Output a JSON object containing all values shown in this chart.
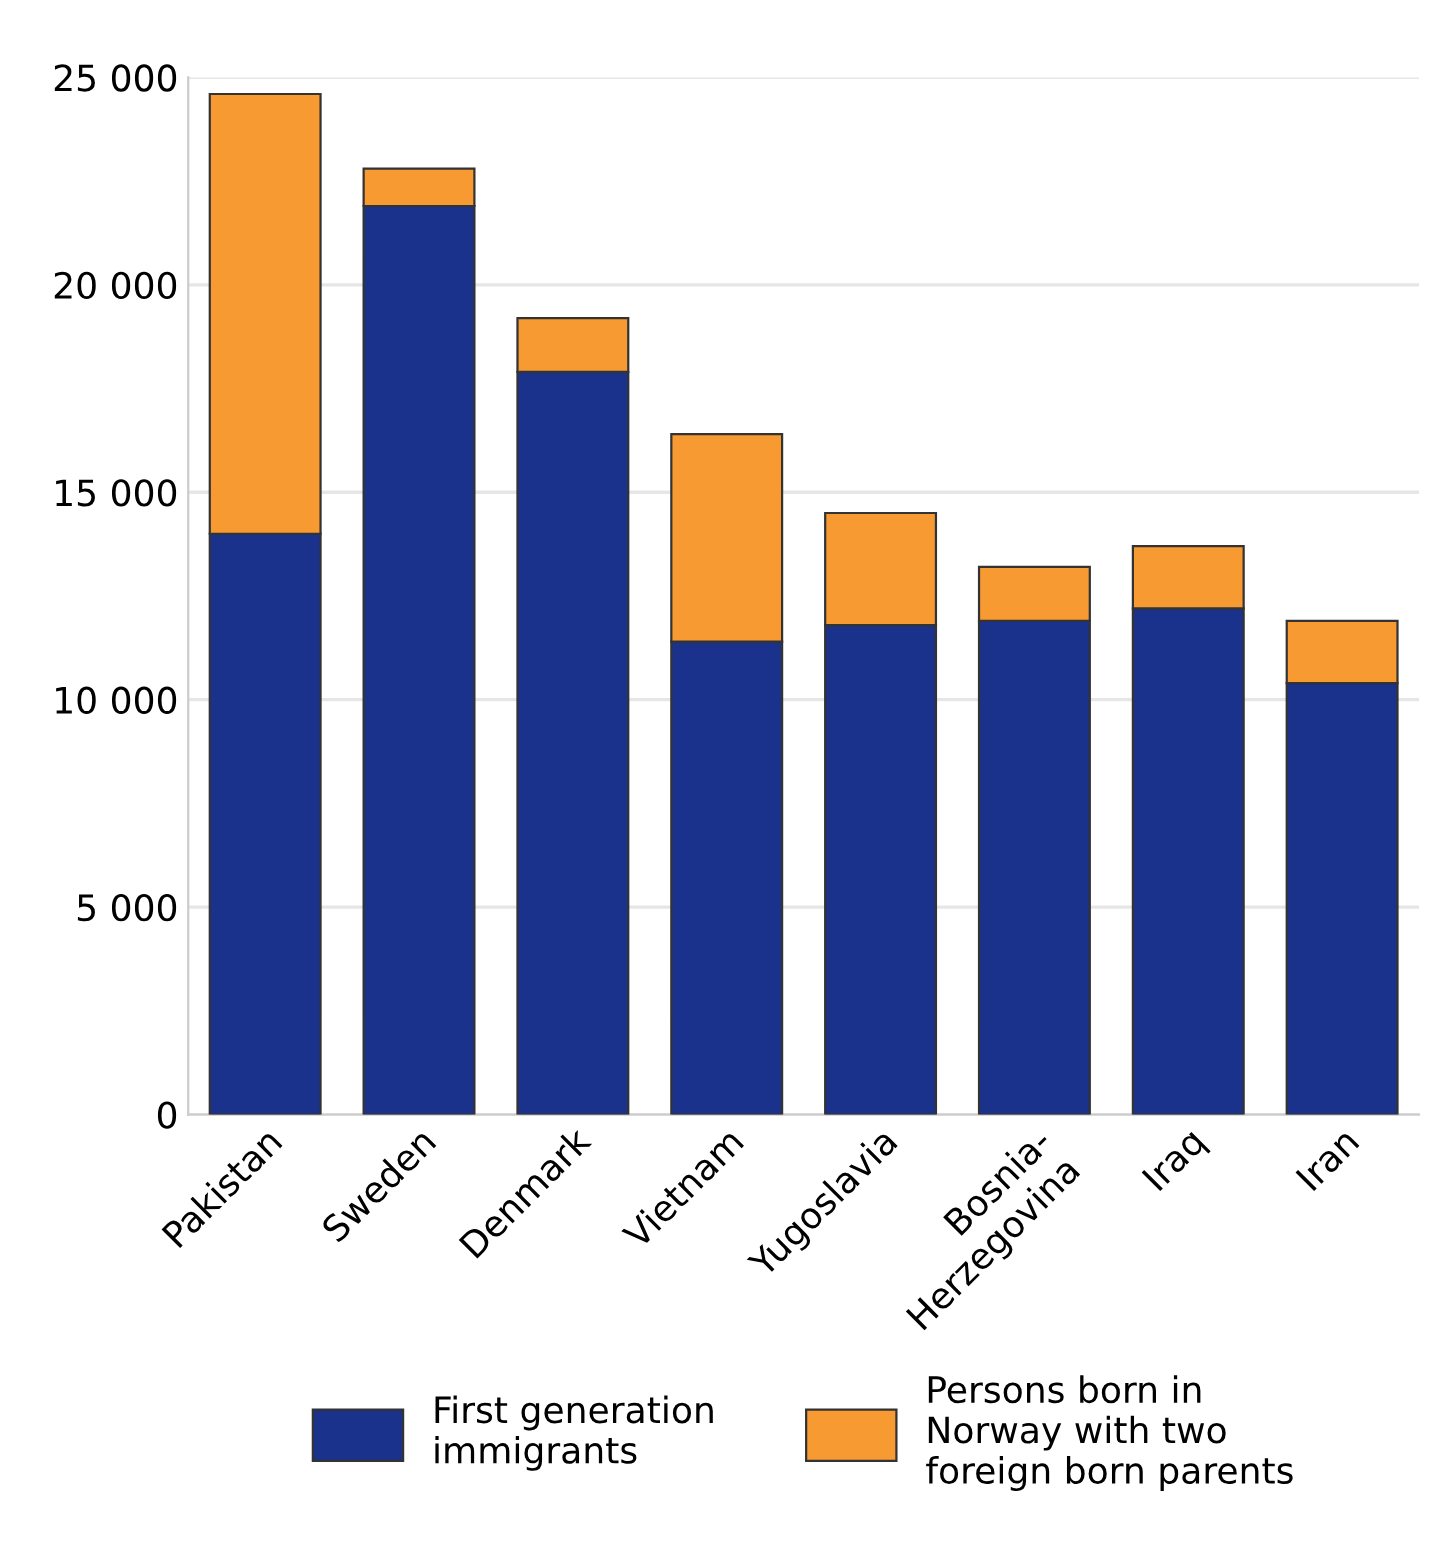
{
  "chart_data": {
    "type": "bar",
    "stacked": true,
    "categories": [
      "Pakistan",
      "Sweden",
      "Denmark",
      "Vietnam",
      "Yugoslavia",
      "Bosnia-\nHerzegovina",
      "Iraq",
      "Iran"
    ],
    "series": [
      {
        "name": "First generation\nimmigrants",
        "color": "#1a328c",
        "values": [
          14000,
          21900,
          17900,
          11400,
          11800,
          11900,
          12200,
          10400
        ]
      },
      {
        "name": "Persons born in\nNorway with two\nforeign born parents",
        "color": "#f79a32",
        "values": [
          10600,
          900,
          1300,
          5000,
          2700,
          1300,
          1500,
          1500
        ]
      }
    ],
    "ylim": [
      0,
      25000
    ],
    "yticks": [
      {
        "value": 0,
        "label": "0"
      },
      {
        "value": 5000,
        "label": "5 000"
      },
      {
        "value": 10000,
        "label": "10 000"
      },
      {
        "value": 15000,
        "label": "15 000"
      },
      {
        "value": 20000,
        "label": "20 000"
      },
      {
        "value": 25000,
        "label": "25 000"
      }
    ],
    "grid": "y",
    "legend": "bottom"
  }
}
